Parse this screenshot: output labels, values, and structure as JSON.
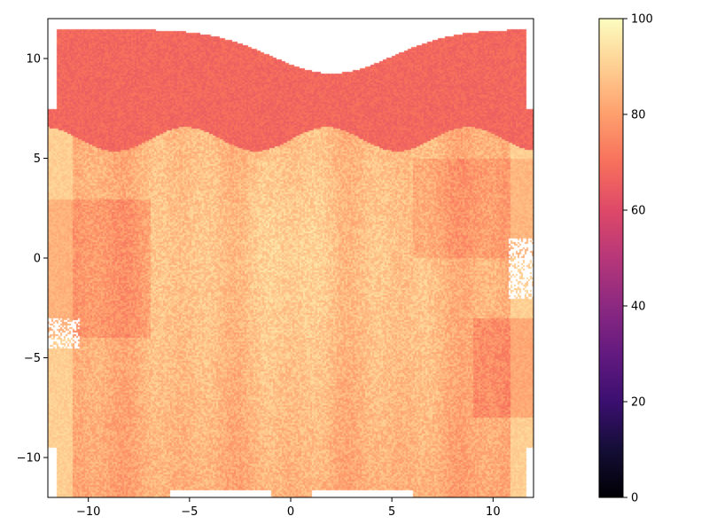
{
  "chart_data": {
    "type": "heatmap",
    "title": "",
    "xlabel": "",
    "ylabel": "",
    "xlim": [
      -12,
      12
    ],
    "ylim": [
      -12,
      12
    ],
    "x_ticks": [
      -10,
      -5,
      0,
      5,
      10
    ],
    "y_ticks": [
      -10,
      -5,
      0,
      5,
      10
    ],
    "x_tick_labels": [
      "−10",
      "−5",
      "0",
      "5",
      "10"
    ],
    "y_tick_labels": [
      "−10",
      "−5",
      "0",
      "5",
      "10"
    ],
    "colormap": "magma",
    "colorbar": {
      "range": [
        0,
        100
      ],
      "ticks": [
        0,
        20,
        40,
        60,
        80,
        100
      ],
      "tick_labels": [
        "0",
        "20",
        "40",
        "60",
        "80",
        "100"
      ]
    },
    "field_summary": {
      "top_band": {
        "y_from": 6,
        "y_to": 12,
        "value": 68
      },
      "bulk_value_range": [
        78,
        95
      ],
      "left_edge_value": 90,
      "right_edge_value": 90
    },
    "grid": false,
    "legend": "none"
  }
}
